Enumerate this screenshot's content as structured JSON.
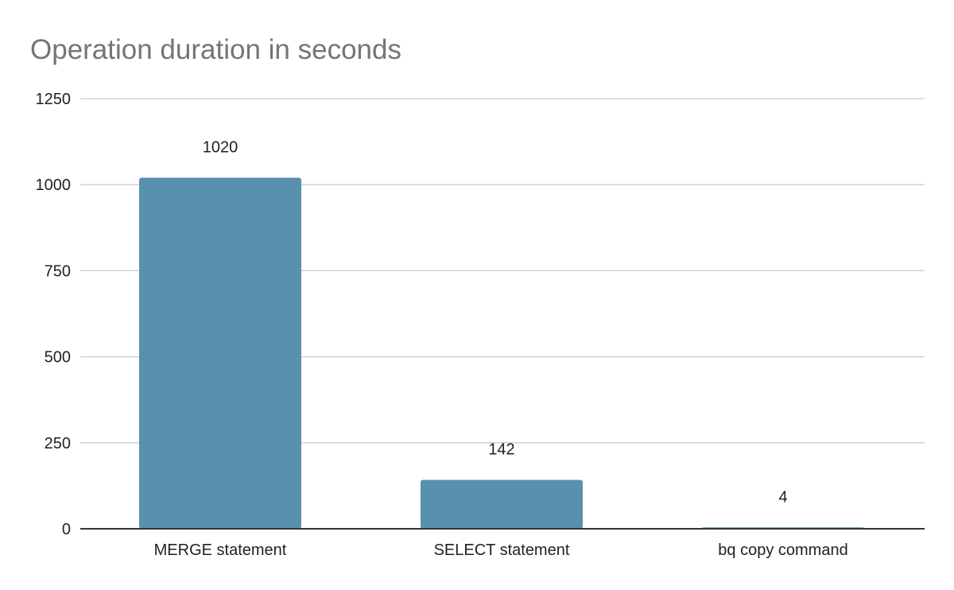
{
  "chart_data": {
    "type": "bar",
    "title": "Operation duration in seconds",
    "categories": [
      "MERGE statement",
      "SELECT statement",
      "bq copy command"
    ],
    "values": [
      1020,
      142,
      4
    ],
    "data_labels": [
      "1020",
      "142",
      "4"
    ],
    "xlabel": "",
    "ylabel": "",
    "ylim": [
      0,
      1250
    ],
    "yticks": [
      0,
      250,
      500,
      750,
      1000,
      1250
    ],
    "ytick_labels": [
      "0",
      "250",
      "500",
      "750",
      "1000",
      "1250"
    ],
    "grid": true,
    "legend": "none",
    "colors": {
      "bar": "#5891af",
      "grid": "#cccccc",
      "axis": "#333333",
      "title": "#757575"
    }
  }
}
